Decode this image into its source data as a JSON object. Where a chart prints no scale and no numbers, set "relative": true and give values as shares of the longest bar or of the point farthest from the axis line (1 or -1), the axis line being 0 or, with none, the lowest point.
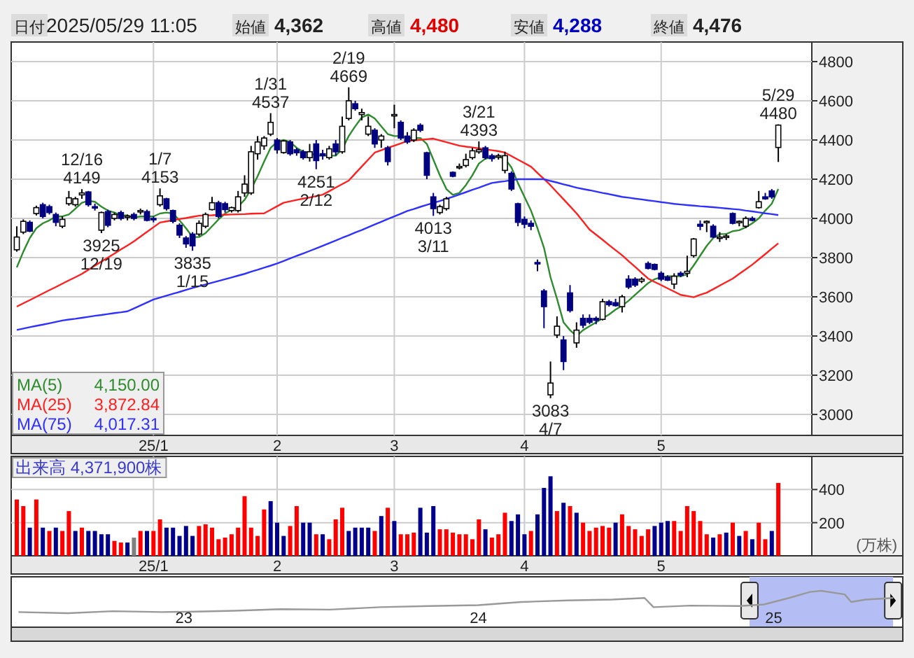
{
  "chart_data": [
    {
      "type": "candlestick",
      "categories": [
        null,
        null,
        null,
        null,
        null,
        null,
        null,
        null,
        null,
        null,
        null,
        null,
        null,
        null,
        null,
        null,
        null,
        null,
        null,
        null,
        null,
        "25/1",
        null,
        null,
        null,
        null,
        null,
        null,
        null,
        null,
        null,
        null,
        null,
        null,
        null,
        null,
        null,
        null,
        null,
        null,
        "2",
        null,
        null,
        null,
        null,
        null,
        null,
        null,
        null,
        null,
        null,
        null,
        null,
        null,
        null,
        null,
        null,
        null,
        "3",
        null,
        null,
        null,
        null,
        null,
        null,
        null,
        null,
        null,
        null,
        null,
        null,
        null,
        null,
        null,
        null,
        null,
        null,
        null,
        "4",
        null,
        null,
        null,
        null,
        null,
        null,
        null,
        null,
        null,
        null,
        null,
        null,
        null,
        null,
        null,
        null,
        null,
        null,
        null,
        null,
        "5",
        null,
        null,
        null,
        null,
        null,
        null,
        null,
        null,
        null,
        null,
        null,
        null,
        null,
        null,
        null,
        null,
        null,
        null
      ],
      "ohlc": [
        [
          3840,
          3960,
          3830,
          3905
        ],
        [
          3930,
          3995,
          3920,
          3985
        ],
        [
          3980,
          3990,
          3930,
          3935
        ],
        [
          4025,
          4065,
          4015,
          4055
        ],
        [
          4070,
          4080,
          4000,
          4010
        ],
        [
          4060,
          4070,
          4020,
          4030
        ],
        [
          4020,
          4030,
          3960,
          3980
        ],
        [
          3960,
          4010,
          3950,
          3995
        ],
        [
          4075,
          4140,
          4065,
          4105
        ],
        [
          4070,
          4110,
          4060,
          4100
        ],
        [
          4120,
          4149,
          4100,
          4130
        ],
        [
          4135,
          4140,
          4060,
          4070
        ],
        [
          4060,
          4075,
          4040,
          4055
        ],
        [
          3940,
          4035,
          3925,
          4030
        ],
        [
          4035,
          4045,
          3955,
          3965
        ],
        [
          4000,
          4030,
          3990,
          4020
        ],
        [
          4030,
          4040,
          3990,
          4000
        ],
        [
          4010,
          4020,
          3990,
          4012
        ],
        [
          4020,
          4030,
          3990,
          4000
        ],
        [
          4035,
          4050,
          4020,
          4040
        ],
        [
          4035,
          4045,
          3985,
          3990
        ],
        [
          4000,
          4010,
          3980,
          3995
        ],
        [
          4070,
          4153,
          4060,
          4115
        ],
        [
          4100,
          4105,
          4040,
          4050
        ],
        [
          4040,
          4045,
          3975,
          3985
        ],
        [
          3965,
          3975,
          3900,
          3915
        ],
        [
          3900,
          3910,
          3850,
          3870
        ],
        [
          3920,
          3930,
          3835,
          3860
        ],
        [
          3920,
          3990,
          3910,
          3975
        ],
        [
          3960,
          4030,
          3950,
          4020
        ],
        [
          4045,
          4110,
          4040,
          4080
        ],
        [
          4080,
          4090,
          4000,
          4010
        ],
        [
          4075,
          4085,
          4030,
          4045
        ],
        [
          4040,
          4060,
          4030,
          4055
        ],
        [
          4040,
          4140,
          4030,
          4110
        ],
        [
          4130,
          4220,
          4110,
          4175
        ],
        [
          4130,
          4370,
          4120,
          4340
        ],
        [
          4330,
          4420,
          4300,
          4390
        ],
        [
          4370,
          4420,
          4350,
          4410
        ],
        [
          4430,
          4537,
          4420,
          4490
        ],
        [
          4400,
          4410,
          4330,
          4350
        ],
        [
          4336,
          4400,
          4330,
          4395
        ],
        [
          4390,
          4400,
          4320,
          4330
        ],
        [
          4350,
          4360,
          4320,
          4335
        ],
        [
          4340,
          4350,
          4300,
          4310
        ],
        [
          4310,
          4380,
          4290,
          4340
        ],
        [
          4380,
          4400,
          4251,
          4295
        ],
        [
          4330,
          4350,
          4300,
          4320
        ],
        [
          4310,
          4370,
          4300,
          4355
        ],
        [
          4380,
          4400,
          4320,
          4340
        ],
        [
          4340,
          4520,
          4330,
          4470
        ],
        [
          4510,
          4669,
          4500,
          4600
        ],
        [
          4585,
          4600,
          4550,
          4560
        ],
        [
          4530,
          4560,
          4500,
          4540
        ],
        [
          4430,
          4520,
          4420,
          4470
        ],
        [
          4450,
          4460,
          4360,
          4380
        ],
        [
          4400,
          4430,
          4360,
          4420
        ],
        [
          4360,
          4370,
          4270,
          4290
        ],
        [
          4525,
          4580,
          4460,
          4530
        ],
        [
          4490,
          4500,
          4400,
          4410
        ],
        [
          4420,
          4440,
          4380,
          4390
        ],
        [
          4400,
          4460,
          4390,
          4450
        ],
        [
          4475,
          4485,
          4440,
          4450
        ],
        [
          4335,
          4340,
          4200,
          4220
        ],
        [
          4110,
          4130,
          4013,
          4050
        ],
        [
          4030,
          4070,
          4020,
          4060
        ],
        [
          4050,
          4110,
          4040,
          4100
        ],
        [
          4235,
          4240,
          4210,
          4215
        ],
        [
          4260,
          4280,
          4250,
          4265
        ],
        [
          4270,
          4330,
          4260,
          4300
        ],
        [
          4310,
          4360,
          4300,
          4345
        ],
        [
          4340,
          4393,
          4330,
          4350
        ],
        [
          4360,
          4370,
          4300,
          4310
        ],
        [
          4320,
          4330,
          4290,
          4305
        ],
        [
          4315,
          4330,
          4300,
          4320
        ],
        [
          4245,
          4340,
          4230,
          4320
        ],
        [
          4230,
          4240,
          4140,
          4150
        ],
        [
          4075,
          4080,
          3960,
          3980
        ],
        [
          3995,
          4010,
          3950,
          3970
        ],
        [
          3975,
          3990,
          3940,
          3960
        ],
        [
          3775,
          3790,
          3730,
          3770
        ],
        [
          3630,
          3640,
          3440,
          3550
        ],
        [
          3100,
          3270,
          3083,
          3160
        ],
        [
          3405,
          3500,
          3390,
          3450
        ],
        [
          3380,
          3400,
          3226,
          3270
        ],
        [
          3620,
          3660,
          3520,
          3530
        ],
        [
          3365,
          3470,
          3340,
          3430
        ],
        [
          3490,
          3510,
          3440,
          3455
        ],
        [
          3490,
          3510,
          3460,
          3470
        ],
        [
          3490,
          3500,
          3460,
          3480
        ],
        [
          3485,
          3590,
          3480,
          3575
        ],
        [
          3575,
          3585,
          3550,
          3560
        ],
        [
          3570,
          3590,
          3550,
          3555
        ],
        [
          3550,
          3610,
          3520,
          3600
        ],
        [
          3690,
          3710,
          3640,
          3650
        ],
        [
          3690,
          3700,
          3650,
          3660
        ],
        [
          3680,
          3700,
          3670,
          3690
        ],
        [
          3770,
          3780,
          3740,
          3745
        ],
        [
          3765,
          3770,
          3735,
          3740
        ],
        [
          3720,
          3730,
          3680,
          3690
        ],
        [
          3700,
          3710,
          3680,
          3685
        ],
        [
          3665,
          3720,
          3640,
          3705
        ],
        [
          3720,
          3730,
          3700,
          3710
        ],
        [
          3720,
          3810,
          3700,
          3730
        ],
        [
          3810,
          3900,
          3800,
          3895
        ],
        [
          3970,
          3990,
          3940,
          3960
        ],
        [
          3980,
          3990,
          3930,
          3985
        ],
        [
          3960,
          3970,
          3900,
          3905
        ],
        [
          3900,
          3930,
          3880,
          3905
        ],
        [
          3905,
          3920,
          3890,
          3910
        ],
        [
          4025,
          4030,
          3970,
          3975
        ],
        [
          3980,
          3990,
          3960,
          3985
        ],
        [
          3960,
          4010,
          3950,
          4000
        ],
        [
          4000,
          4010,
          3985,
          3990
        ],
        [
          4055,
          4140,
          4050,
          4085
        ],
        [
          4110,
          4130,
          4095,
          4100
        ],
        [
          4140,
          4150,
          4100,
          4110
        ],
        [
          4362,
          4480,
          4288,
          4476
        ]
      ],
      "series": [
        {
          "name": "MA(5)",
          "type": "line",
          "color": "#2e8b2e",
          "values": [
            3750,
            3830,
            3900,
            3950,
            3975,
            3990,
            4010,
            4010,
            4020,
            4050,
            4080,
            4090,
            4085,
            4060,
            4040,
            4030,
            4015,
            4015,
            4005,
            4010,
            4010,
            4010,
            4025,
            4030,
            4025,
            3990,
            3950,
            3905,
            3905,
            3925,
            3960,
            3995,
            4025,
            4045,
            4060,
            4095,
            4150,
            4215,
            4290,
            4360,
            4390,
            4400,
            4390,
            4360,
            4340,
            4335,
            4320,
            4320,
            4320,
            4320,
            4355,
            4420,
            4470,
            4515,
            4530,
            4510,
            4470,
            4430,
            4420,
            4420,
            4410,
            4410,
            4410,
            4380,
            4300,
            4220,
            4150,
            4120,
            4130,
            4170,
            4220,
            4280,
            4305,
            4310,
            4315,
            4305,
            4260,
            4180,
            4110,
            4040,
            3950,
            3850,
            3700,
            3590,
            3470,
            3430,
            3400,
            3430,
            3450,
            3470,
            3490,
            3510,
            3535,
            3555,
            3580,
            3610,
            3640,
            3670,
            3690,
            3700,
            3705,
            3705,
            3705,
            3715,
            3760,
            3810,
            3860,
            3900,
            3920,
            3920,
            3935,
            3940,
            3955,
            3975,
            4000,
            4040,
            4075,
            4150
          ]
        },
        {
          "name": "MA(25)",
          "type": "line",
          "color": "#ff2020",
          "values": [
            3550,
            3567,
            3583,
            3600,
            3617,
            3634,
            3650,
            3667,
            3684,
            3700,
            3717,
            3738,
            3759,
            3780,
            3800,
            3821,
            3842,
            3862,
            3883,
            3907,
            3931,
            3955,
            3979,
            3985,
            3991,
            3997,
            4002,
            4008,
            4014,
            4015,
            4016,
            4018,
            4019,
            4020,
            4021,
            4022,
            4024,
            4025,
            4026,
            4044,
            4062,
            4080,
            4087,
            4094,
            4101,
            4107,
            4114,
            4121,
            4139,
            4157,
            4175,
            4193,
            4229,
            4265,
            4300,
            4336,
            4348,
            4360,
            4371,
            4383,
            4395,
            4398,
            4401,
            4404,
            4407,
            4398,
            4389,
            4380,
            4371,
            4366,
            4362,
            4357,
            4352,
            4348,
            4343,
            4336,
            4318,
            4300,
            4282,
            4264,
            4232,
            4201,
            4169,
            4133,
            4098,
            4062,
            4026,
            3985,
            3943,
            3917,
            3891,
            3864,
            3838,
            3812,
            3782,
            3753,
            3723,
            3693,
            3676,
            3660,
            3643,
            3627,
            3610,
            3604,
            3598,
            3610,
            3621,
            3639,
            3657,
            3675,
            3693,
            3717,
            3740,
            3764,
            3791,
            3818,
            3846,
            3873
          ]
        },
        {
          "name": "MA(75)",
          "type": "line",
          "color": "#3030ff",
          "values": [
            3431,
            3438,
            3445,
            3452,
            3458,
            3465,
            3472,
            3479,
            3484,
            3488,
            3493,
            3498,
            3503,
            3507,
            3512,
            3517,
            3521,
            3526,
            3541,
            3556,
            3571,
            3586,
            3596,
            3606,
            3616,
            3625,
            3635,
            3645,
            3654,
            3663,
            3672,
            3681,
            3690,
            3699,
            3708,
            3717,
            3728,
            3738,
            3749,
            3759,
            3770,
            3783,
            3796,
            3809,
            3821,
            3834,
            3847,
            3860,
            3874,
            3887,
            3901,
            3914,
            3928,
            3941,
            3955,
            3969,
            3983,
            3997,
            4010,
            4024,
            4038,
            4048,
            4059,
            4069,
            4079,
            4089,
            4100,
            4110,
            4122,
            4134,
            4146,
            4157,
            4169,
            4181,
            4186,
            4190,
            4195,
            4200,
            4200,
            4200,
            4200,
            4200,
            4191,
            4183,
            4174,
            4166,
            4157,
            4150,
            4144,
            4137,
            4130,
            4124,
            4117,
            4110,
            4106,
            4101,
            4097,
            4092,
            4088,
            4083,
            4079,
            4074,
            4071,
            4068,
            4065,
            4062,
            4060,
            4057,
            4054,
            4051,
            4048,
            4045,
            4040,
            4036,
            4031,
            4026,
            4022,
            4017
          ]
        }
      ],
      "ylim": [
        2893,
        4900
      ],
      "yticks": [
        3000,
        3200,
        3400,
        3600,
        3800,
        4000,
        4200,
        4400,
        4600,
        4800
      ],
      "grid": true,
      "legend": "bottom left",
      "annotations": [
        "日付",
        "2025/05/29 11:05",
        "始値",
        "4,362",
        "高値",
        "4,480",
        "安値",
        "4,288",
        "終値",
        "4,476",
        "4,150.00",
        "3,872.84",
        "4,017.31",
        {
          "text": "12/16\n4149",
          "y": 4149
        },
        {
          "text": "3925\n12/19",
          "y": 3925
        },
        {
          "text": "1/7\n4153",
          "y": 4153
        },
        {
          "text": "3835\n1/15",
          "y": 3835
        },
        {
          "text": "1/31\n4537",
          "y": 4537
        },
        {
          "text": "4251\n2/12",
          "y": 4251
        },
        {
          "text": "2/19\n4669",
          "y": 4669
        },
        {
          "text": "4013\n3/11",
          "y": 4013
        },
        {
          "text": "3/21\n4393",
          "y": 4393
        },
        {
          "text": "3083\n4/7",
          "y": 3083
        },
        {
          "text": "5/29\n4480",
          "y": 4480
        }
      ]
    },
    {
      "type": "bar",
      "categories": [
        null,
        null,
        null,
        null,
        null,
        null,
        null,
        null,
        null,
        null,
        null,
        null,
        null,
        null,
        null,
        null,
        null,
        null,
        null,
        null,
        null,
        "25/1",
        null,
        null,
        null,
        null,
        null,
        null,
        null,
        null,
        null,
        null,
        null,
        null,
        null,
        null,
        null,
        null,
        null,
        null,
        "2",
        null,
        null,
        null,
        null,
        null,
        null,
        null,
        null,
        null,
        null,
        null,
        null,
        null,
        null,
        null,
        null,
        null,
        "3",
        null,
        null,
        null,
        null,
        null,
        null,
        null,
        null,
        null,
        null,
        null,
        null,
        null,
        null,
        null,
        null,
        null,
        null,
        null,
        "4",
        null,
        null,
        null,
        null,
        null,
        null,
        null,
        null,
        null,
        null,
        null,
        null,
        null,
        null,
        null,
        null,
        null,
        null,
        null,
        null,
        "5",
        null,
        null,
        null,
        null,
        null,
        null,
        null,
        null,
        null,
        null,
        null,
        null,
        null,
        null,
        null,
        null,
        null,
        null
      ],
      "values": [
        340,
        300,
        170,
        340,
        170,
        150,
        170,
        150,
        270,
        150,
        170,
        150,
        150,
        130,
        130,
        90,
        80,
        80,
        110,
        150,
        150,
        150,
        220,
        170,
        170,
        120,
        180,
        120,
        180,
        190,
        170,
        100,
        110,
        130,
        170,
        360,
        170,
        120,
        280,
        330,
        200,
        120,
        180,
        300,
        200,
        200,
        130,
        130,
        100,
        220,
        290,
        150,
        170,
        170,
        170,
        150,
        240,
        290,
        210,
        130,
        130,
        140,
        290,
        140,
        300,
        160,
        160,
        140,
        130,
        130,
        100,
        220,
        160,
        110,
        130,
        260,
        210,
        250,
        130,
        150,
        250,
        410,
        480,
        270,
        320,
        300,
        260,
        200,
        150,
        170,
        180,
        170,
        200,
        250,
        180,
        160,
        120,
        160,
        180,
        200,
        210,
        210,
        150,
        300,
        270,
        210,
        130,
        110,
        130,
        140,
        200,
        120,
        150,
        100,
        200,
        100,
        150,
        440
      ],
      "colors": [
        "#ff0000",
        "#ff0000",
        "#00008b",
        "#ff0000",
        "#00008b",
        "#ff0000",
        "#00008b",
        "#ff0000",
        "#ff0000",
        "#00008b",
        "#ff0000",
        "#00008b",
        "#00008b",
        "#00008b",
        "#00008b",
        "#ff0000",
        "#ff0000",
        "#00008b",
        "#808080",
        "#ff0000",
        "#00008b",
        "#ff0000",
        "#ff0000",
        "#00008b",
        "#00008b",
        "#00008b",
        "#00008b",
        "#00008b",
        "#ff0000",
        "#ff0000",
        "#ff0000",
        "#ff0000",
        "#ff0000",
        "#ff0000",
        "#ff0000",
        "#ff0000",
        "#ff0000",
        "#ff0000",
        "#ff0000",
        "#00008b",
        "#00008b",
        "#00008b",
        "#ff0000",
        "#ff0000",
        "#00008b",
        "#00008b",
        "#ff0000",
        "#00008b",
        "#ff0000",
        "#ff0000",
        "#ff0000",
        "#00008b",
        "#00008b",
        "#00008b",
        "#00008b",
        "#ff0000",
        "#00008b",
        "#ff0000",
        "#00008b",
        "#ff0000",
        "#ff0000",
        "#ff0000",
        "#00008b",
        "#00008b",
        "#00008b",
        "#ff0000",
        "#ff0000",
        "#ff0000",
        "#ff0000",
        "#ff0000",
        "#ff0000",
        "#ff0000",
        "#00008b",
        "#ff0000",
        "#ff0000",
        "#ff0000",
        "#00008b",
        "#00008b",
        "#00008b",
        "#ff0000",
        "#00008b",
        "#00008b",
        "#00008b",
        "#ff0000",
        "#00008b",
        "#ff0000",
        "#00008b",
        "#ff0000",
        "#ff0000",
        "#ff0000",
        "#ff0000",
        "#ff0000",
        "#00008b",
        "#ff0000",
        "#ff0000",
        "#ff0000",
        "#ff0000",
        "#ff0000",
        "#00008b",
        "#00008b",
        "#00008b",
        "#ff0000",
        "#ff0000",
        "#ff0000",
        "#ff0000",
        "#ff0000",
        "#ff0000",
        "#00008b",
        "#ff0000",
        "#00008b",
        "#ff0000",
        "#00008b",
        "#ff0000",
        "#00008b",
        "#ff0000",
        "#ff0000",
        "#00008b",
        "#ff0000"
      ],
      "ylim": [
        0,
        600
      ],
      "yticks": [
        200,
        400
      ],
      "ylabel": "(万株)",
      "grid": true,
      "annotations": [
        "出来高",
        "4,371,900株"
      ]
    },
    {
      "type": "line",
      "relative": true,
      "x": [
        "2022-06-10",
        "2022-08-10",
        "2022-10-05",
        "2022-12-05",
        "2023-01-15",
        "2023-03-05",
        "2023-05-01",
        "2023-07-01",
        "2023-09-01",
        "2023-11-01",
        "2024-01-01",
        "2024-02-23",
        "2024-04-20",
        "2024-06-15",
        "2024-07-25",
        "2024-08-05",
        "2024-09-20",
        "2024-11-20",
        "2024-12-20",
        "2025-01-20",
        "2025-02-15",
        "2025-03-01",
        "2025-03-30",
        "2025-04-07",
        "2025-04-25",
        "2025-05-29"
      ],
      "series": [
        {
          "color": "#999999",
          "values": [
            0.05,
            0,
            0.09,
            0.05,
            0.07,
            0.11,
            0.18,
            0.16,
            0.27,
            0.32,
            0.36,
            0.5,
            0.57,
            0.61,
            0.68,
            0.27,
            0.34,
            0.32,
            0.39,
            0.68,
            0.95,
            1,
            0.84,
            0.5,
            0.61,
            0.68
          ]
        }
      ],
      "xlim": [
        "2022-06-01",
        "2025-06-10"
      ],
      "xticks": [
        {
          "value": "2023-01-01",
          "label": "23"
        },
        {
          "value": "2024-01-01",
          "label": "24"
        },
        {
          "value": "2025-01-01",
          "label": "25"
        }
      ],
      "bands": [
        {
          "axis": "x",
          "from": "2024-12-02",
          "to": "2025-05-29",
          "color": "#b4bef5"
        }
      ],
      "tick_labels": "x"
    }
  ]
}
